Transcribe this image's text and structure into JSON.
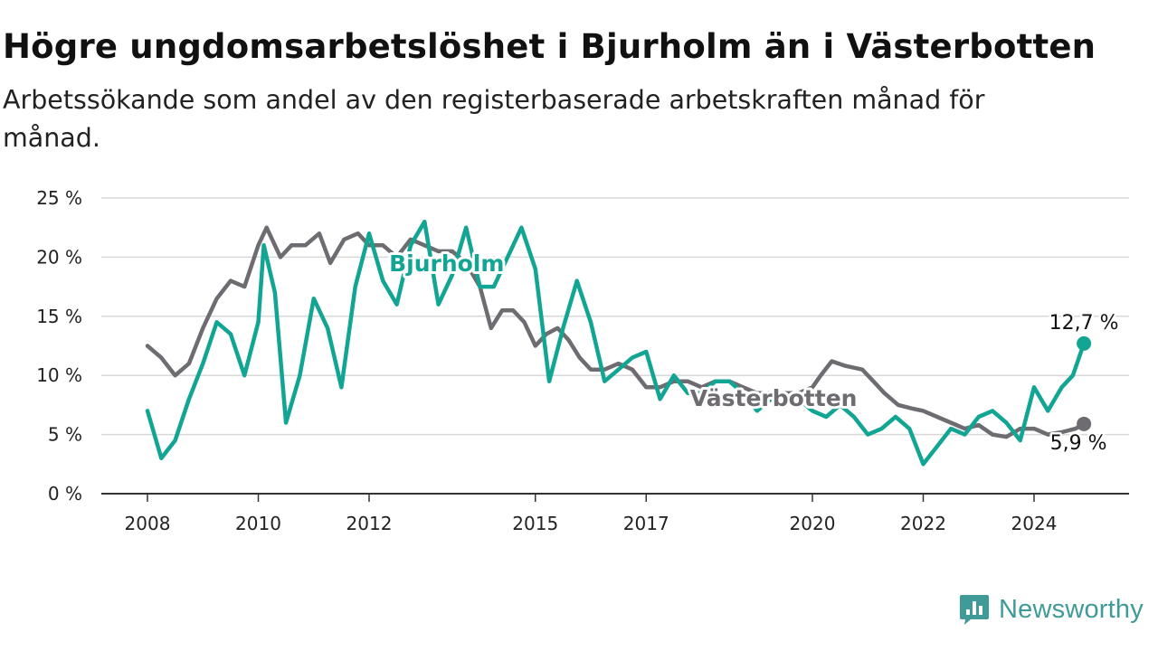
{
  "title": "Högre ungdomsarbetslöshet i Bjurholm än i Västerbotten",
  "subtitle": "Arbetssökande som andel av den registerbaserade arbetskraften månad för månad.",
  "brand": {
    "name": "Newsworthy",
    "icon": "newsworthy-logo-icon",
    "color": "#3f9a98"
  },
  "colors": {
    "bjurholm": "#12a594",
    "vasterbotten": "#6e6c71",
    "grid": "#d9d9d9",
    "axis": "#333333"
  },
  "chart_data": {
    "type": "line",
    "title": "Högre ungdomsarbetslöshet i Bjurholm än i Västerbotten",
    "xlabel": "",
    "ylabel": "",
    "ylim": [
      0,
      25
    ],
    "xlim": [
      2008.0,
      2024.9
    ],
    "grid": true,
    "y_ticks": [
      0,
      5,
      10,
      15,
      20,
      25
    ],
    "y_tick_labels": [
      "0 %",
      "5 %",
      "10 %",
      "15 %",
      "20 %",
      "25 %"
    ],
    "x_ticks": [
      2008,
      2010,
      2012,
      2015,
      2017,
      2020,
      2022,
      2024
    ],
    "x_tick_labels": [
      "2008",
      "2010",
      "2012",
      "2015",
      "2017",
      "2020",
      "2022",
      "2024"
    ],
    "series": [
      {
        "name": "Västerbotten",
        "color": "#6e6c71",
        "end_label": "5,9 %",
        "points": [
          [
            2008.0,
            12.5
          ],
          [
            2008.25,
            11.5
          ],
          [
            2008.5,
            10.0
          ],
          [
            2008.75,
            11.0
          ],
          [
            2009.0,
            14.0
          ],
          [
            2009.25,
            16.5
          ],
          [
            2009.5,
            18.0
          ],
          [
            2009.75,
            17.5
          ],
          [
            2010.0,
            21.0
          ],
          [
            2010.15,
            22.5
          ],
          [
            2010.4,
            20.0
          ],
          [
            2010.6,
            21.0
          ],
          [
            2010.85,
            21.0
          ],
          [
            2011.1,
            22.0
          ],
          [
            2011.3,
            19.5
          ],
          [
            2011.55,
            21.5
          ],
          [
            2011.8,
            22.0
          ],
          [
            2012.0,
            21.0
          ],
          [
            2012.25,
            21.0
          ],
          [
            2012.5,
            20.0
          ],
          [
            2012.75,
            21.5
          ],
          [
            2013.0,
            21.0
          ],
          [
            2013.25,
            20.5
          ],
          [
            2013.5,
            20.5
          ],
          [
            2013.75,
            19.5
          ],
          [
            2014.0,
            17.5
          ],
          [
            2014.2,
            14.0
          ],
          [
            2014.4,
            15.5
          ],
          [
            2014.6,
            15.5
          ],
          [
            2014.8,
            14.5
          ],
          [
            2015.0,
            12.5
          ],
          [
            2015.2,
            13.5
          ],
          [
            2015.4,
            14.0
          ],
          [
            2015.6,
            13.0
          ],
          [
            2015.8,
            11.5
          ],
          [
            2016.0,
            10.5
          ],
          [
            2016.25,
            10.5
          ],
          [
            2016.5,
            11.0
          ],
          [
            2016.75,
            10.5
          ],
          [
            2017.0,
            9.0
          ],
          [
            2017.25,
            9.0
          ],
          [
            2017.5,
            9.5
          ],
          [
            2017.75,
            9.5
          ],
          [
            2018.0,
            9.0
          ],
          [
            2018.25,
            9.5
          ],
          [
            2018.5,
            9.5
          ],
          [
            2018.75,
            9.0
          ],
          [
            2019.0,
            8.5
          ],
          [
            2019.25,
            8.5
          ],
          [
            2019.5,
            8.5
          ],
          [
            2019.75,
            8.5
          ],
          [
            2020.0,
            9.0
          ],
          [
            2020.15,
            10.0
          ],
          [
            2020.35,
            11.2
          ],
          [
            2020.6,
            10.8
          ],
          [
            2020.9,
            10.5
          ],
          [
            2021.1,
            9.5
          ],
          [
            2021.3,
            8.5
          ],
          [
            2021.55,
            7.5
          ],
          [
            2021.8,
            7.2
          ],
          [
            2022.0,
            7.0
          ],
          [
            2022.25,
            6.5
          ],
          [
            2022.5,
            6.0
          ],
          [
            2022.75,
            5.5
          ],
          [
            2023.0,
            5.8
          ],
          [
            2023.25,
            5.0
          ],
          [
            2023.5,
            4.8
          ],
          [
            2023.75,
            5.5
          ],
          [
            2024.0,
            5.5
          ],
          [
            2024.25,
            5.0
          ],
          [
            2024.5,
            5.2
          ],
          [
            2024.75,
            5.5
          ],
          [
            2024.9,
            5.9
          ]
        ]
      },
      {
        "name": "Bjurholm",
        "color": "#12a594",
        "end_label": "12,7 %",
        "points": [
          [
            2008.0,
            7.0
          ],
          [
            2008.25,
            3.0
          ],
          [
            2008.5,
            4.5
          ],
          [
            2008.75,
            8.0
          ],
          [
            2009.0,
            11.0
          ],
          [
            2009.25,
            14.5
          ],
          [
            2009.5,
            13.5
          ],
          [
            2009.75,
            10.0
          ],
          [
            2010.0,
            14.5
          ],
          [
            2010.1,
            21.0
          ],
          [
            2010.3,
            17.0
          ],
          [
            2010.5,
            6.0
          ],
          [
            2010.75,
            10.0
          ],
          [
            2011.0,
            16.5
          ],
          [
            2011.25,
            14.0
          ],
          [
            2011.5,
            9.0
          ],
          [
            2011.75,
            17.5
          ],
          [
            2012.0,
            22.0
          ],
          [
            2012.25,
            18.0
          ],
          [
            2012.5,
            16.0
          ],
          [
            2012.75,
            21.0
          ],
          [
            2013.0,
            23.0
          ],
          [
            2013.25,
            16.0
          ],
          [
            2013.5,
            18.5
          ],
          [
            2013.75,
            22.5
          ],
          [
            2014.0,
            17.5
          ],
          [
            2014.25,
            17.5
          ],
          [
            2014.5,
            20.0
          ],
          [
            2014.75,
            22.5
          ],
          [
            2015.0,
            19.0
          ],
          [
            2015.25,
            9.5
          ],
          [
            2015.5,
            14.0
          ],
          [
            2015.75,
            18.0
          ],
          [
            2016.0,
            14.5
          ],
          [
            2016.25,
            9.5
          ],
          [
            2016.5,
            10.5
          ],
          [
            2016.75,
            11.5
          ],
          [
            2017.0,
            12.0
          ],
          [
            2017.25,
            8.0
          ],
          [
            2017.5,
            10.0
          ],
          [
            2017.75,
            8.5
          ],
          [
            2018.0,
            8.5
          ],
          [
            2018.25,
            9.5
          ],
          [
            2018.5,
            9.5
          ],
          [
            2018.75,
            8.5
          ],
          [
            2019.0,
            7.0
          ],
          [
            2019.25,
            8.0
          ],
          [
            2019.5,
            7.5
          ],
          [
            2019.75,
            8.0
          ],
          [
            2020.0,
            7.0
          ],
          [
            2020.25,
            6.5
          ],
          [
            2020.5,
            7.5
          ],
          [
            2020.75,
            6.5
          ],
          [
            2021.0,
            5.0
          ],
          [
            2021.25,
            5.5
          ],
          [
            2021.5,
            6.5
          ],
          [
            2021.75,
            5.5
          ],
          [
            2022.0,
            2.5
          ],
          [
            2022.25,
            4.0
          ],
          [
            2022.5,
            5.5
          ],
          [
            2022.75,
            5.0
          ],
          [
            2023.0,
            6.5
          ],
          [
            2023.25,
            7.0
          ],
          [
            2023.5,
            6.0
          ],
          [
            2023.75,
            4.5
          ],
          [
            2024.0,
            9.0
          ],
          [
            2024.25,
            7.0
          ],
          [
            2024.5,
            9.0
          ],
          [
            2024.7,
            10.0
          ],
          [
            2024.9,
            12.7
          ]
        ]
      }
    ],
    "series_labels": [
      {
        "series": "Bjurholm",
        "text": "Bjurholm",
        "anchor_x": 2013.4,
        "anchor_y": 18.8
      },
      {
        "series": "Västerbotten",
        "text": "Västerbotten",
        "anchor_x": 2019.3,
        "anchor_y": 7.4
      }
    ]
  }
}
